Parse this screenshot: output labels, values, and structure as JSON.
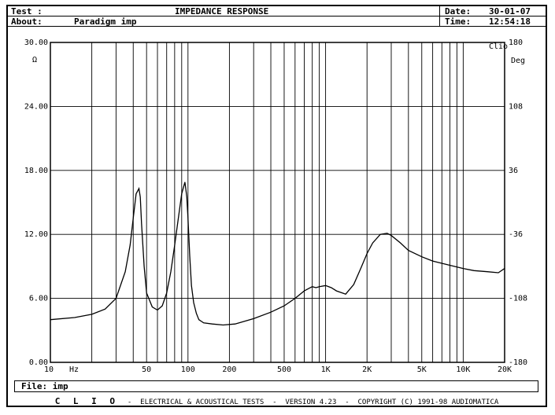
{
  "header": {
    "test_label": "Test :",
    "title": "IMPEDANCE RESPONSE",
    "date_label": "Date:",
    "date_value": "30-01-07",
    "about_label": "About:",
    "about_value": "Paradigm imp",
    "time_label": "Time:",
    "time_value": "12:54:18"
  },
  "clio_badge": "Clio",
  "file_line": "File: imp",
  "footer": {
    "clio": "C L I O",
    "text": "-  ELECTRICAL & ACOUSTICAL TESTS  -  VERSION 4.23  -  COPYRIGHT (C) 1991-98 AUDIOMATICA"
  },
  "chart_data": {
    "type": "line",
    "title": "IMPEDANCE RESPONSE",
    "xscale": "log",
    "xlim": [
      10,
      20000
    ],
    "ylim": [
      0,
      30
    ],
    "y2lim": [
      -180,
      180
    ],
    "left_unit": "Ω",
    "right_unit": "Deg",
    "x_unit": "Hz",
    "grid": true,
    "y_ticks": [
      "0.00",
      "6.00",
      "12.00",
      "18.00",
      "24.00",
      "30.00"
    ],
    "y_tick_values": [
      0,
      6,
      12,
      18,
      24,
      30
    ],
    "y2_ticks": [
      "-180",
      "-108",
      "-36",
      "36",
      "108",
      "180"
    ],
    "x_ticks": [
      {
        "v": 10,
        "label": "10"
      },
      {
        "v": 50,
        "label": "50"
      },
      {
        "v": 100,
        "label": "100"
      },
      {
        "v": 200,
        "label": "200"
      },
      {
        "v": 500,
        "label": "500"
      },
      {
        "v": 1000,
        "label": "1K"
      },
      {
        "v": 2000,
        "label": "2K"
      },
      {
        "v": 5000,
        "label": "5K"
      },
      {
        "v": 10000,
        "label": "10K"
      },
      {
        "v": 20000,
        "label": "20K"
      }
    ],
    "series": [
      {
        "color": "#000000",
        "x": [
          10,
          15,
          20,
          25,
          30,
          35,
          38,
          40,
          42,
          44,
          45,
          46,
          48,
          50,
          55,
          60,
          65,
          70,
          75,
          80,
          85,
          90,
          95,
          98,
          100,
          103,
          106,
          110,
          115,
          120,
          130,
          150,
          180,
          220,
          300,
          400,
          500,
          600,
          700,
          800,
          850,
          900,
          1000,
          1100,
          1200,
          1400,
          1600,
          1800,
          2000,
          2200,
          2500,
          2800,
          3000,
          3500,
          4000,
          5000,
          6000,
          8000,
          10000,
          12000,
          15000,
          18000,
          20000
        ],
        "y": [
          4.0,
          4.2,
          4.5,
          5.0,
          6.0,
          8.5,
          11.0,
          13.5,
          15.8,
          16.3,
          15.5,
          13.0,
          9.0,
          6.5,
          5.2,
          4.9,
          5.3,
          6.5,
          8.5,
          11.0,
          13.5,
          15.8,
          16.9,
          15.5,
          13.5,
          10.0,
          7.2,
          5.6,
          4.6,
          4.0,
          3.7,
          3.6,
          3.5,
          3.6,
          4.1,
          4.7,
          5.3,
          6.0,
          6.7,
          7.1,
          7.0,
          7.1,
          7.2,
          7.0,
          6.7,
          6.4,
          7.3,
          8.8,
          10.2,
          11.2,
          12.0,
          12.1,
          11.9,
          11.2,
          10.5,
          9.9,
          9.5,
          9.1,
          8.8,
          8.6,
          8.5,
          8.4,
          8.8
        ]
      }
    ]
  }
}
